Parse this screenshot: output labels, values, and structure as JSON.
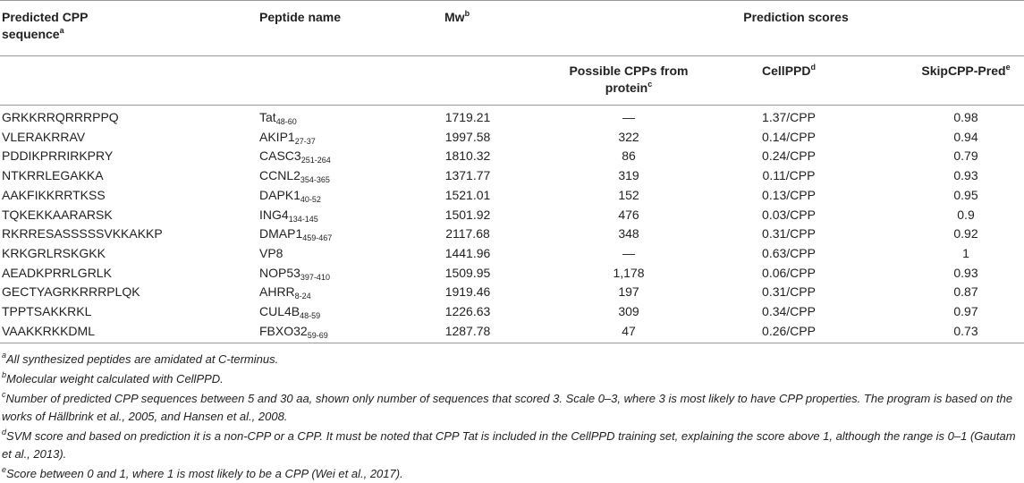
{
  "table": {
    "headers": [
      {
        "text": "Predicted CPP sequence",
        "sup": "a"
      },
      {
        "text": "Peptide name"
      },
      {
        "text": "Mw",
        "sup": "b"
      },
      {
        "text": "Prediction scores"
      }
    ],
    "subheaders": [
      {
        "text": "Possible CPPs from protein",
        "sup": "c"
      },
      {
        "text": "CellPPD",
        "sup": "d"
      },
      {
        "text": "SkipCPP-Pred",
        "sup": "e"
      }
    ],
    "rows": [
      [
        "GRKKRRQRRRPPQ",
        {
          "name": "Tat",
          "sub": "48-60"
        },
        "1719.21",
        "—",
        "1.37/CPP",
        "0.98"
      ],
      [
        "VLERAKRRAV",
        {
          "name": "AKIP1",
          "sub": "27-37"
        },
        "1997.58",
        "322",
        "0.14/CPP",
        "0.94"
      ],
      [
        "PDDIKPRRIRKPRY",
        {
          "name": "CASC3",
          "sub": "251-264"
        },
        "1810.32",
        "86",
        "0.24/CPP",
        "0.79"
      ],
      [
        "NTKRRLEGAKKA",
        {
          "name": "CCNL2",
          "sub": "354-365"
        },
        "1371.77",
        "319",
        "0.11/CPP",
        "0.93"
      ],
      [
        "AAKFIKKRRTKSS",
        {
          "name": "DAPK1",
          "sub": "40-52"
        },
        "1521.01",
        "152",
        "0.13/CPP",
        "0.95"
      ],
      [
        "TQKEKKAARARSK",
        {
          "name": "ING4",
          "sub": "134-145"
        },
        "1501.92",
        "476",
        "0.03/CPP",
        "0.9"
      ],
      [
        "RKRRESASSSSSVKKAKKP",
        {
          "name": "DMAP1",
          "sub": "459-467"
        },
        "2117.68",
        "348",
        "0.31/CPP",
        "0.92"
      ],
      [
        "KRKGRLRSKGKK",
        {
          "name": "VP8"
        },
        "1441.96",
        "—",
        "0.63/CPP",
        "1"
      ],
      [
        "AEADKPRRLGRLK",
        {
          "name": "NOP53",
          "sub": "397-410"
        },
        "1509.95",
        "1,178",
        "0.06/CPP",
        "0.93"
      ],
      [
        "GECTYAGRKRRRPLQK",
        {
          "name": "AHRR",
          "sub": "8-24"
        },
        "1919.46",
        "197",
        "0.31/CPP",
        "0.87"
      ],
      [
        "TPPTSAKKRKL",
        {
          "name": "CUL4B",
          "sub": "48-59"
        },
        "1226.63",
        "309",
        "0.34/CPP",
        "0.97"
      ],
      [
        "VAAKKRKKDML",
        {
          "name": "FBXO32",
          "sub": "59-69"
        },
        "1287.78",
        "47",
        "0.26/CPP",
        "0.73"
      ]
    ]
  },
  "footnotes": [
    {
      "mark": "a",
      "text": "All synthesized peptides are amidated at C-terminus."
    },
    {
      "mark": "b",
      "text": "Molecular weight calculated with CellPPD."
    },
    {
      "mark": "c",
      "text": "Number of predicted CPP sequences between 5 and 30 aa, shown only number of sequences that scored 3. Scale 0–3, where 3 is most likely to have CPP properties. The program is based on the works of Hällbrink et al., 2005, and Hansen et al., 2008."
    },
    {
      "mark": "d",
      "text": "SVM score and based on prediction it is a non-CPP or a CPP. It must be noted that CPP Tat is included in the CellPPD training set, explaining the score above 1, although the range is 0–1 (Gautam et al., 2013)."
    },
    {
      "mark": "e",
      "text": "Score between 0 and 1, where 1 is most likely to be a CPP (Wei et al., 2017)."
    }
  ]
}
